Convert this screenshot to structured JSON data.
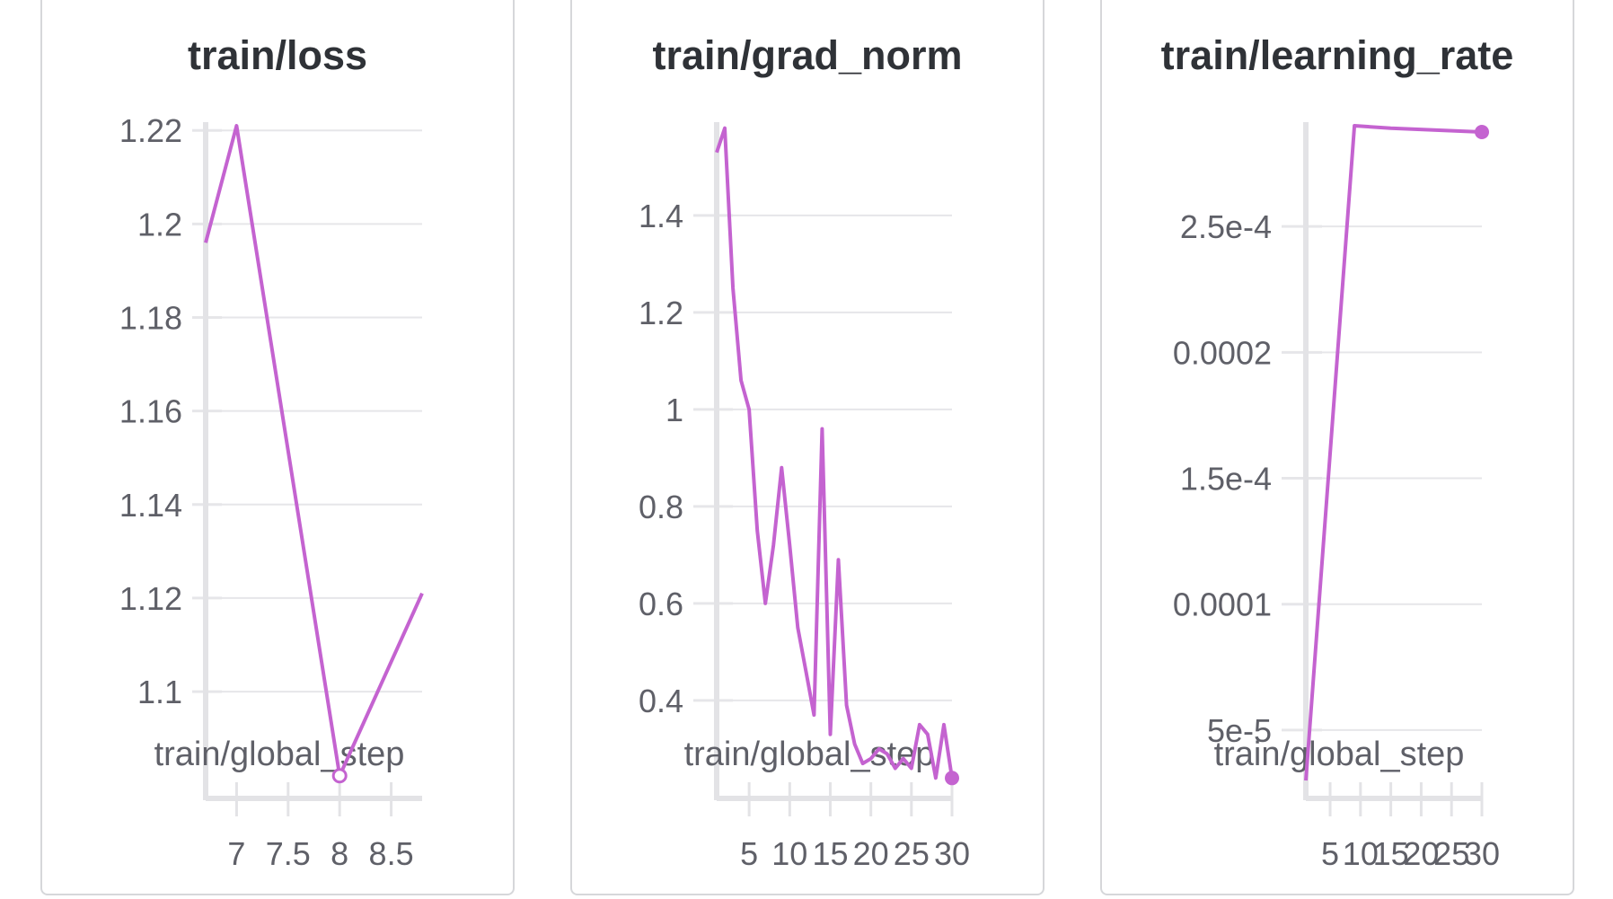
{
  "panels": [
    {
      "title": "train/loss",
      "chart_data": {
        "type": "line",
        "title": "train/loss",
        "xlabel": "train/global_step",
        "ylabel": "",
        "series": [
          {
            "x": [
              6.7,
              7,
              8,
              8.8
            ],
            "y": [
              1.196,
              1.221,
              1.082,
              1.121
            ]
          }
        ],
        "xlim": [
          6.7,
          8.8
        ],
        "ylim": [
          1.081,
          1.221
        ],
        "xticks": [
          7,
          7.5,
          8,
          8.5
        ],
        "xtick_labels": [
          "7",
          "7.5",
          "8",
          "8.5"
        ],
        "yticks": [
          1.1,
          1.12,
          1.14,
          1.16,
          1.18,
          1.2,
          1.22
        ],
        "ytick_labels": [
          "1.1",
          "1.12",
          "1.14",
          "1.16",
          "1.18",
          "1.2",
          "1.22"
        ],
        "grid": true,
        "end_marker": "open-circle",
        "color": "#c463d0"
      }
    },
    {
      "title": "train/grad_norm",
      "chart_data": {
        "type": "line",
        "title": "train/grad_norm",
        "xlabel": "train/global_step",
        "ylabel": "",
        "series": [
          {
            "x": [
              1,
              2,
              3,
              4,
              5,
              6,
              7,
              8,
              9,
              10,
              11,
              12,
              13,
              14,
              15,
              16,
              17,
              18,
              19,
              20,
              21,
              22,
              23,
              24,
              25,
              26,
              27,
              28,
              29,
              30
            ],
            "y": [
              1.53,
              1.58,
              1.25,
              1.06,
              1.0,
              0.75,
              0.6,
              0.72,
              0.88,
              0.72,
              0.55,
              0.46,
              0.37,
              0.96,
              0.33,
              0.69,
              0.39,
              0.31,
              0.27,
              0.28,
              0.3,
              0.29,
              0.26,
              0.28,
              0.26,
              0.35,
              0.33,
              0.24,
              0.35,
              0.24
            ]
          }
        ],
        "xlim": [
          1,
          30
        ],
        "ylim": [
          0.235,
          1.585
        ],
        "xticks": [
          5,
          10,
          15,
          20,
          25,
          30
        ],
        "xtick_labels": [
          "5",
          "10",
          "15",
          "20",
          "25",
          "30"
        ],
        "yticks": [
          0.4,
          0.6,
          0.8,
          1,
          1.2,
          1.4
        ],
        "ytick_labels": [
          "0.4",
          "0.6",
          "0.8",
          "1",
          "1.2",
          "1.4"
        ],
        "grid": true,
        "end_marker": "filled-circle",
        "color": "#c463d0"
      }
    },
    {
      "title": "train/learning_rate",
      "chart_data": {
        "type": "line",
        "title": "train/learning_rate",
        "xlabel": "train/global_step",
        "ylabel": "",
        "series": [
          {
            "x": [
              1,
              9,
              15,
              30
            ],
            "y": [
              3e-05,
              0.00029,
              0.000289,
              0.0002875
            ]
          }
        ],
        "xlim": [
          1,
          30
        ],
        "ylim": [
          3e-05,
          0.00029
        ],
        "xticks": [
          5,
          10,
          15,
          20,
          25,
          30
        ],
        "xtick_labels": [
          "5",
          "10",
          "15",
          "20",
          "25",
          "30"
        ],
        "yticks": [
          5e-05,
          0.0001,
          0.00015,
          0.0002,
          0.00025
        ],
        "ytick_labels": [
          "5e-5",
          "0.0001",
          "1.5e-4",
          "0.0002",
          "2.5e-4"
        ],
        "grid": true,
        "end_marker": "filled-circle",
        "color": "#c463d0"
      }
    }
  ]
}
